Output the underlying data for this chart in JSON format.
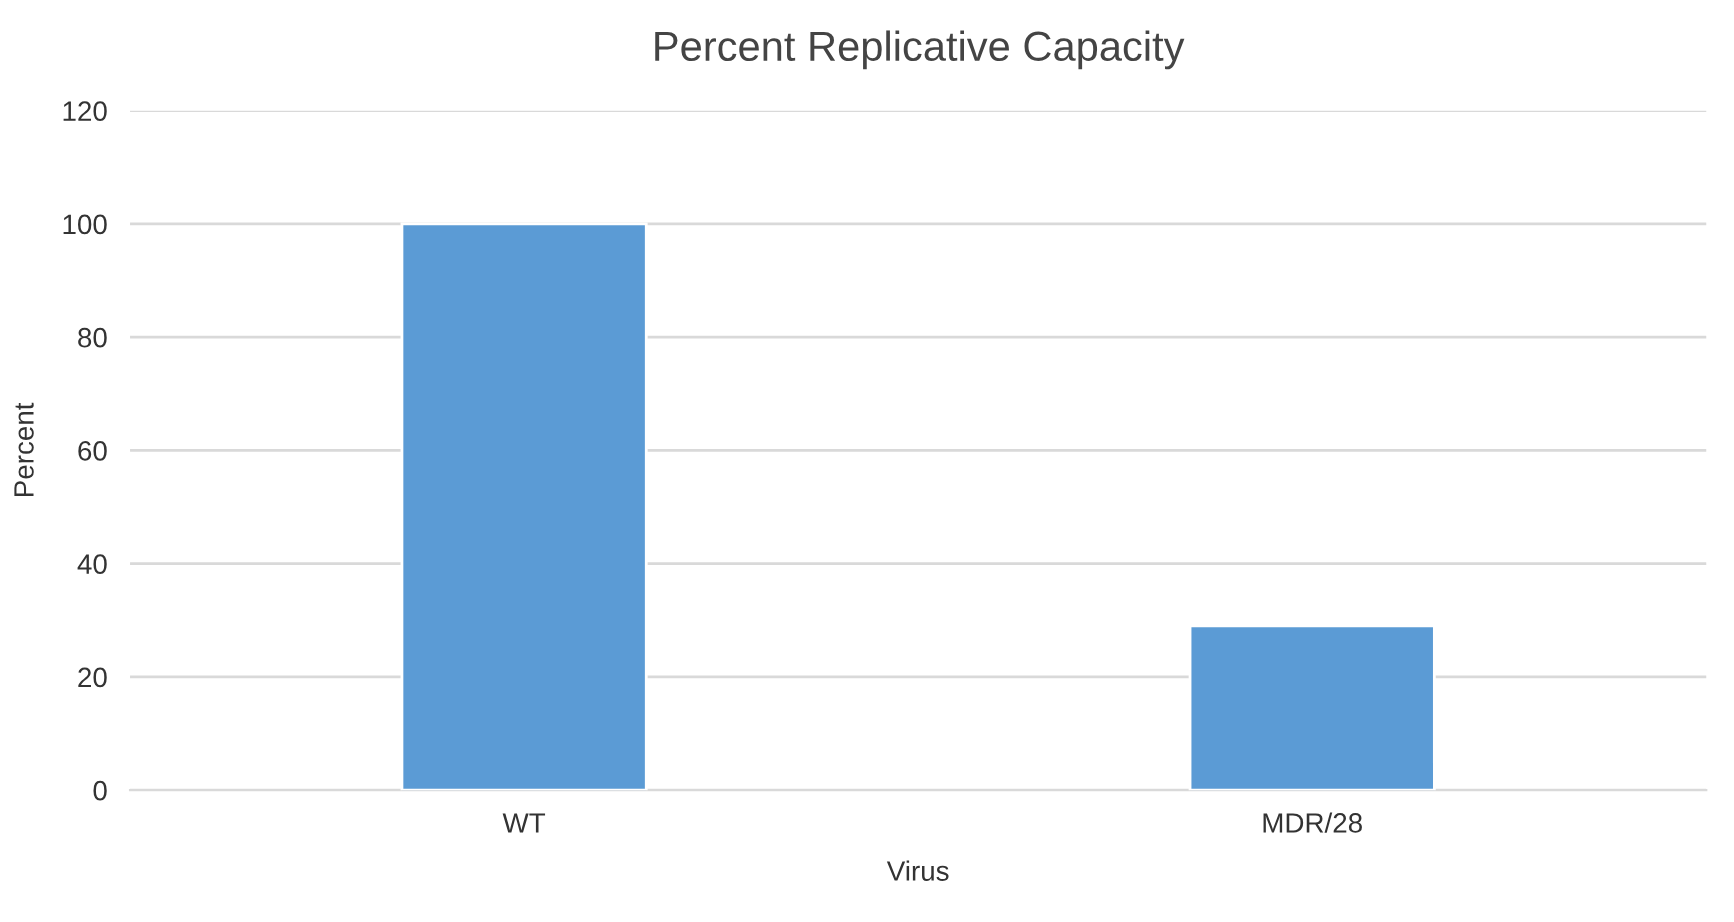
{
  "chart_data": {
    "type": "bar",
    "title": "Percent Replicative Capacity",
    "xlabel": "Virus",
    "ylabel": "Percent",
    "categories": [
      "WT",
      "MDR/28"
    ],
    "series": [
      {
        "color": "#5b9bd5",
        "values": [
          100,
          29
        ]
      }
    ],
    "ylim": [
      0,
      120
    ],
    "yticks": [
      0,
      20,
      40,
      60,
      80,
      100,
      120
    ],
    "grid": "y",
    "legend": false
  }
}
